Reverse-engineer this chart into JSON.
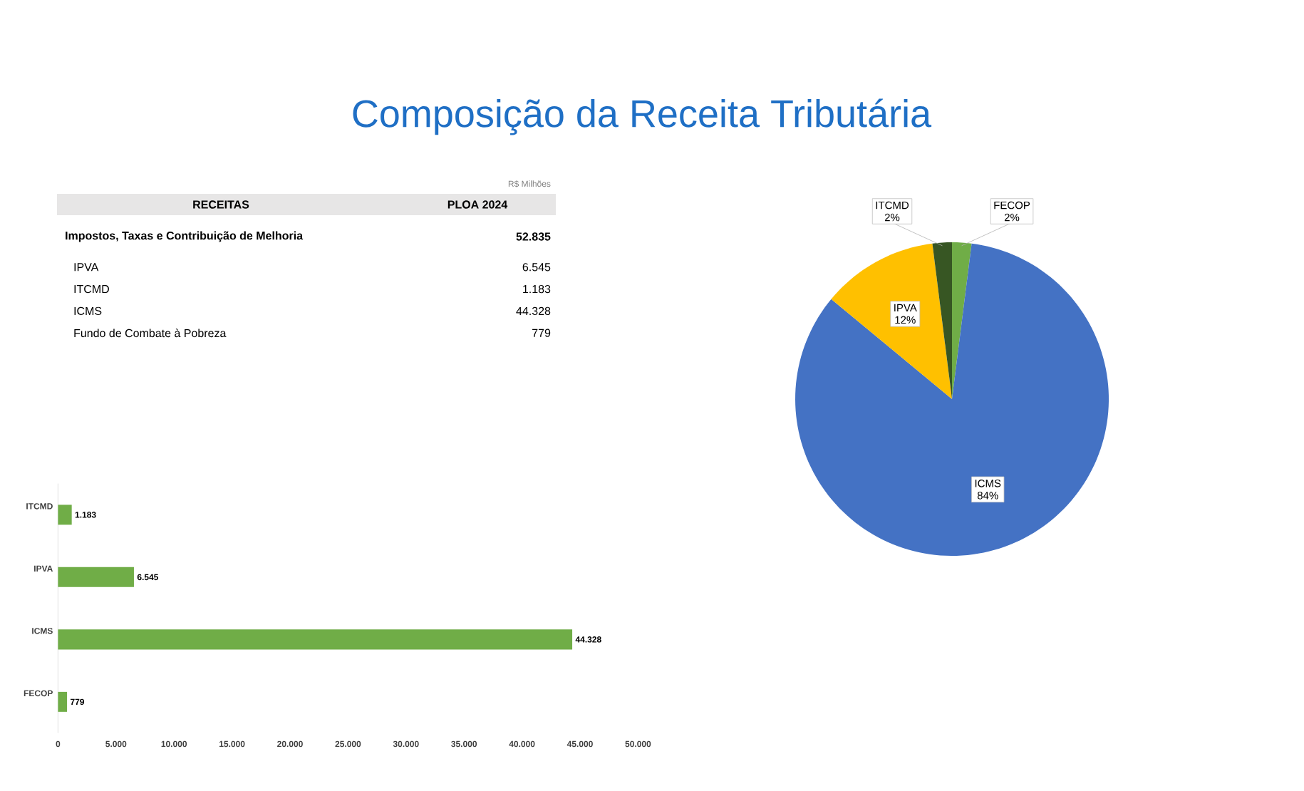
{
  "chart_data": [
    {
      "type": "other",
      "title": "Composição da Receita Tributária",
      "annotations": [
        "R$ Milhões",
        "RECEITAS",
        "PLOA 2024",
        "Impostos, Taxas e Contribuição de Melhoria",
        "52.835",
        "IPVA",
        "6.545",
        "ITCMD",
        "1.183",
        "ICMS",
        "44.328",
        "Fundo de Combate à Pobreza",
        "779"
      ]
    },
    {
      "type": "bar",
      "orientation": "horizontal",
      "categories": [
        "ITCMD",
        "IPVA",
        "ICMS",
        "FECOP"
      ],
      "values": [
        1183,
        6545,
        44328,
        779
      ],
      "color": "#70ad47",
      "value_labels": [
        "1.183",
        "6.545",
        "44.328",
        "779"
      ],
      "xlim": [
        0,
        50000
      ],
      "xticks": [
        0,
        {
          "value": 5000,
          "label": "5.000"
        },
        {
          "value": 10000,
          "label": "10.000"
        },
        {
          "value": 15000,
          "label": "15.000"
        },
        {
          "value": 20000,
          "label": "20.000"
        },
        {
          "value": 25000,
          "label": "25.000"
        },
        {
          "value": 30000,
          "label": "30.000"
        },
        {
          "value": 35000,
          "label": "35.000"
        },
        {
          "value": 40000,
          "label": "40.000"
        },
        {
          "value": 45000,
          "label": "45.000"
        },
        {
          "value": 50000,
          "label": "50.000"
        }
      ]
    },
    {
      "type": "pie",
      "categories": [
        "FECOP",
        "ICMS",
        "IPVA",
        "ITCMD"
      ],
      "values": [
        2,
        84,
        12,
        2
      ],
      "colors": [
        "#70ad47",
        "#4472c4",
        "#ffc000",
        "#375623"
      ],
      "value_labels": [
        "2%",
        "84%",
        "12%",
        "2%"
      ]
    }
  ]
}
